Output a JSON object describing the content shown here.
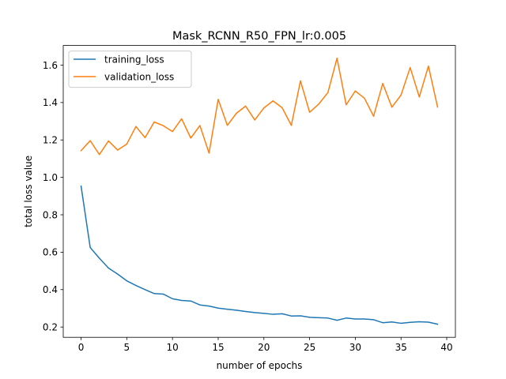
{
  "chart_data": {
    "type": "line",
    "title": "Mask_RCNN_R50_FPN_lr:0.005",
    "xlabel": "number of epochs",
    "ylabel": "total loss value",
    "xlim": [
      -1.95,
      40.95
    ],
    "ylim": [
      0.145,
      1.705
    ],
    "xticks": [
      0,
      5,
      10,
      15,
      20,
      25,
      30,
      35,
      40
    ],
    "yticks": [
      0.2,
      0.4,
      0.6,
      0.8,
      1.0,
      1.2,
      1.4,
      1.6
    ],
    "xtick_labels": [
      "0",
      "5",
      "10",
      "15",
      "20",
      "25",
      "30",
      "35",
      "40"
    ],
    "ytick_labels": [
      "0.2",
      "0.4",
      "0.6",
      "0.8",
      "1.0",
      "1.2",
      "1.4",
      "1.6"
    ],
    "grid": false,
    "legend_position": "top-left",
    "x": [
      0,
      1,
      2,
      3,
      4,
      5,
      6,
      7,
      8,
      9,
      10,
      11,
      12,
      13,
      14,
      15,
      16,
      17,
      18,
      19,
      20,
      21,
      22,
      23,
      24,
      25,
      26,
      27,
      28,
      29,
      30,
      31,
      32,
      33,
      34,
      35,
      36,
      37,
      38,
      39
    ],
    "series": [
      {
        "name": "training_loss",
        "color": "#1f77b4",
        "values": [
          0.953,
          0.625,
          0.568,
          0.515,
          0.483,
          0.447,
          0.422,
          0.4,
          0.379,
          0.376,
          0.351,
          0.342,
          0.339,
          0.318,
          0.312,
          0.301,
          0.295,
          0.29,
          0.283,
          0.277,
          0.273,
          0.268,
          0.271,
          0.259,
          0.26,
          0.252,
          0.25,
          0.248,
          0.236,
          0.248,
          0.243,
          0.243,
          0.239,
          0.223,
          0.227,
          0.22,
          0.225,
          0.228,
          0.226,
          0.215
        ]
      },
      {
        "name": "validation_loss",
        "color": "#ff7f0e",
        "values": [
          1.143,
          1.196,
          1.122,
          1.195,
          1.146,
          1.178,
          1.272,
          1.212,
          1.296,
          1.276,
          1.245,
          1.313,
          1.21,
          1.277,
          1.13,
          1.417,
          1.278,
          1.343,
          1.381,
          1.307,
          1.371,
          1.409,
          1.372,
          1.278,
          1.516,
          1.348,
          1.392,
          1.453,
          1.637,
          1.388,
          1.462,
          1.423,
          1.327,
          1.502,
          1.375,
          1.44,
          1.587,
          1.43,
          1.595,
          1.376
        ]
      }
    ]
  }
}
